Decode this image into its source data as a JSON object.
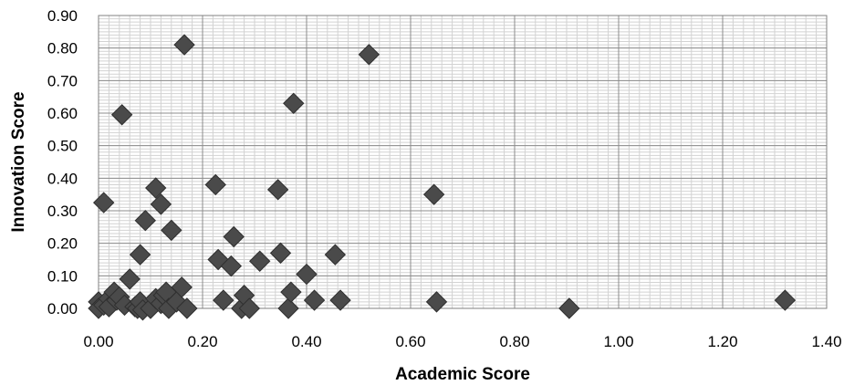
{
  "chart_data": {
    "type": "scatter",
    "title": "",
    "xlabel": "Academic Score",
    "ylabel": "Innovation Score",
    "xlim": [
      0,
      1.4
    ],
    "ylim": [
      0,
      0.9
    ],
    "x_ticks": [
      "0.00",
      "0.20",
      "0.40",
      "0.60",
      "0.80",
      "1.00",
      "1.20",
      "1.40"
    ],
    "y_ticks": [
      "0.00",
      "0.10",
      "0.20",
      "0.30",
      "0.40",
      "0.50",
      "0.60",
      "0.70",
      "0.80",
      "0.90"
    ],
    "grid": true,
    "legend": false,
    "marker": "diamond",
    "marker_color": "#4a4a4a",
    "series": [
      {
        "points": [
          [
            0.0,
            0.02
          ],
          [
            0.0,
            0.0
          ],
          [
            0.01,
            0.325
          ],
          [
            0.01,
            0.01
          ],
          [
            0.02,
            0.03
          ],
          [
            0.02,
            0.005
          ],
          [
            0.03,
            0.05
          ],
          [
            0.035,
            0.025
          ],
          [
            0.04,
            0.035
          ],
          [
            0.045,
            0.595
          ],
          [
            0.05,
            0.01
          ],
          [
            0.06,
            0.09
          ],
          [
            0.07,
            0.005
          ],
          [
            0.075,
            0.0
          ],
          [
            0.08,
            0.165
          ],
          [
            0.08,
            0.02
          ],
          [
            0.085,
            -0.005
          ],
          [
            0.09,
            0.27
          ],
          [
            0.1,
            0.0
          ],
          [
            0.11,
            0.37
          ],
          [
            0.11,
            0.03
          ],
          [
            0.12,
            0.32
          ],
          [
            0.12,
            0.015
          ],
          [
            0.125,
            0.04
          ],
          [
            0.13,
            0.05
          ],
          [
            0.135,
            0.0
          ],
          [
            0.14,
            0.24
          ],
          [
            0.15,
            0.02
          ],
          [
            0.16,
            0.065
          ],
          [
            0.165,
            0.81
          ],
          [
            0.17,
            0.0
          ],
          [
            0.225,
            0.38
          ],
          [
            0.23,
            0.15
          ],
          [
            0.24,
            0.025
          ],
          [
            0.255,
            0.13
          ],
          [
            0.26,
            0.22
          ],
          [
            0.275,
            0.0
          ],
          [
            0.28,
            0.04
          ],
          [
            0.29,
            0.0
          ],
          [
            0.31,
            0.145
          ],
          [
            0.345,
            0.365
          ],
          [
            0.35,
            0.17
          ],
          [
            0.365,
            0.0
          ],
          [
            0.37,
            0.05
          ],
          [
            0.375,
            0.63
          ],
          [
            0.4,
            0.105
          ],
          [
            0.415,
            0.025
          ],
          [
            0.455,
            0.165
          ],
          [
            0.465,
            0.025
          ],
          [
            0.52,
            0.78
          ],
          [
            0.645,
            0.35
          ],
          [
            0.65,
            0.02
          ],
          [
            0.905,
            0.0
          ],
          [
            1.32,
            0.025
          ]
        ]
      }
    ]
  }
}
